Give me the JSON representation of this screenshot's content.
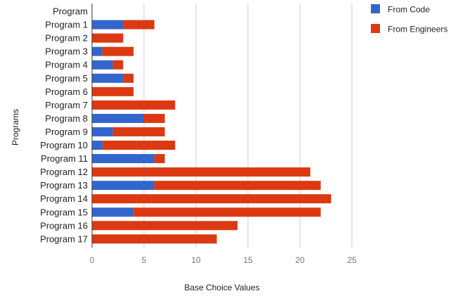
{
  "chart_data": {
    "type": "bar",
    "orientation": "horizontal",
    "stacked": true,
    "categories": [
      "Program",
      "Program 1",
      "Program 2",
      "Program 3",
      "Program 4",
      "Program 5",
      "Program 6",
      "Program 7",
      "Program 8",
      "Program 9",
      "Program 10",
      "Program 11",
      "Program 12",
      "Program 13",
      "Program 14",
      "Program 15",
      "Program 16",
      "Program 17"
    ],
    "series": [
      {
        "name": "From Code",
        "color": "#3366cc",
        "values": [
          0,
          3,
          0,
          1,
          2,
          3,
          0,
          0,
          5,
          2,
          1,
          6,
          0,
          6,
          0,
          4,
          0,
          0
        ]
      },
      {
        "name": "From Engineers",
        "color": "#dc3912",
        "values": [
          0,
          3,
          3,
          3,
          1,
          1,
          4,
          8,
          2,
          5,
          7,
          1,
          21,
          16,
          23,
          18,
          14,
          12
        ]
      }
    ],
    "xlabel": "Base Choice Values",
    "ylabel": "Programs",
    "xlim": [
      0,
      25
    ],
    "xticks": [
      "0",
      "5",
      "10",
      "15",
      "20",
      "25"
    ],
    "grid": true,
    "legend_position": "right"
  }
}
